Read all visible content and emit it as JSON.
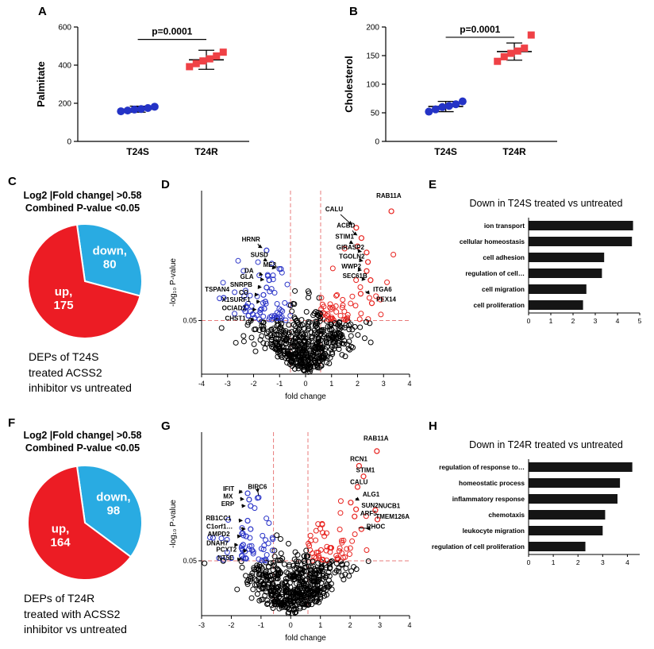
{
  "panels": {
    "a": {
      "letter": "A"
    },
    "b": {
      "letter": "B"
    },
    "c": {
      "letter": "C",
      "header_line1": "Log2 |Fold change| >0.58",
      "header_line2": "Combined P-value <0.05",
      "caption_lines": [
        "DEPs of T24S",
        "treated ACSS2",
        "inhibitor vs untreated"
      ]
    },
    "d": {
      "letter": "D"
    },
    "e": {
      "letter": "E"
    },
    "f": {
      "letter": "F",
      "header_line1": "Log2 |Fold change| >0.58",
      "header_line2": "Combined P-value <0.05",
      "caption_lines": [
        "DEPs of T24R",
        "treated with ACSS2",
        "inhibitor vs untreated"
      ]
    },
    "g": {
      "letter": "G"
    },
    "h": {
      "letter": "H"
    }
  },
  "chart_data": [
    {
      "id": "palmitate",
      "type": "scatter_dot",
      "ylabel": "Palmitate",
      "ylim": [
        0,
        600
      ],
      "yticks": [
        0,
        200,
        400,
        600
      ],
      "pvalue": "p=0.0001",
      "bracket_y": 535,
      "groups": [
        {
          "label": "T24S",
          "marker": "circle",
          "color": "#2433c6",
          "values": [
            158,
            162,
            167,
            170,
            175,
            182
          ],
          "mean": 169,
          "sd": 16
        },
        {
          "label": "T24R",
          "marker": "square",
          "color": "#ef4146",
          "values": [
            392,
            408,
            422,
            433,
            448,
            468
          ],
          "mean": 428,
          "sd": 50
        }
      ]
    },
    {
      "id": "cholesterol",
      "type": "scatter_dot",
      "ylabel": "Cholesterol",
      "ylim": [
        0,
        200
      ],
      "yticks": [
        0,
        50,
        100,
        150,
        200
      ],
      "pvalue": "p=0.0001",
      "bracket_y": 182,
      "groups": [
        {
          "label": "T24S",
          "marker": "circle",
          "color": "#2433c6",
          "values": [
            52,
            56,
            60,
            62,
            65,
            70
          ],
          "mean": 61,
          "sd": 9
        },
        {
          "label": "T24R",
          "marker": "square",
          "color": "#ef4146",
          "values": [
            140,
            148,
            154,
            158,
            163,
            186
          ],
          "mean": 157,
          "sd": 15
        }
      ]
    },
    {
      "id": "pie-t24s",
      "type": "pie",
      "start_deg": -8,
      "slices": [
        {
          "name": "down",
          "line1": "down,",
          "line2": "80",
          "value": 80,
          "color": "#29abe2",
          "text_color": "#ffffff"
        },
        {
          "name": "up",
          "line1": "up,",
          "line2": "175",
          "value": 175,
          "color": "#ec1c24",
          "text_color": "#ffffff"
        }
      ]
    },
    {
      "id": "volcano-t24s",
      "type": "volcano",
      "xlabel": "fold change",
      "ylabel": "-log₁₀ P-value",
      "xlim": [
        -4,
        4
      ],
      "ylim": [
        0,
        4.45
      ],
      "xticks": [
        -4,
        -3,
        -2,
        -1,
        0,
        1,
        2,
        3,
        4
      ],
      "sig_x": 0.58,
      "sig_y": 1.3,
      "sig_label": "0.05",
      "cloud": {
        "seed": 7,
        "n": 620,
        "x_sd": 1.05,
        "x_shift": 0,
        "y_noise": 0.62,
        "y_slope": 0.5
      },
      "colors": {
        "up": "#e8231f",
        "down": "#2b35c8",
        "ns": "#000000",
        "dash": "#e87c7c"
      },
      "genes": [
        {
          "label": "CALU",
          "x": 1.95,
          "y": 3.55,
          "lx": 1.1,
          "ly": 3.95,
          "anchor": "middle",
          "arrow": true
        },
        {
          "label": "RAB11A",
          "x": 3.3,
          "y": 3.95,
          "lx": 2.72,
          "ly": 4.28,
          "anchor": "start",
          "arrow": false
        },
        {
          "label": "ACBD",
          "x": 2.15,
          "y": 3.3,
          "lx": 1.55,
          "ly": 3.55,
          "anchor": "middle",
          "arrow": true
        },
        {
          "label": "STIM1",
          "x": 2.0,
          "y": 3.1,
          "lx": 1.5,
          "ly": 3.28,
          "anchor": "middle",
          "arrow": true
        },
        {
          "label": "GIRASP2",
          "x": 2.35,
          "y": 2.95,
          "lx": 1.72,
          "ly": 3.02,
          "anchor": "middle",
          "arrow": true
        },
        {
          "label": "TGOLN2",
          "x": 2.4,
          "y": 2.72,
          "lx": 1.78,
          "ly": 2.8,
          "anchor": "middle",
          "arrow": true
        },
        {
          "label": "WWP2",
          "x": 2.35,
          "y": 2.5,
          "lx": 1.76,
          "ly": 2.56,
          "anchor": "middle",
          "arrow": true
        },
        {
          "label": "SEC61B",
          "x": 2.5,
          "y": 2.28,
          "lx": 1.9,
          "ly": 2.33,
          "anchor": "middle",
          "arrow": true
        },
        {
          "label": "ITGA6",
          "x": 2.12,
          "y": 1.95,
          "lx": 2.6,
          "ly": 2.0,
          "anchor": "start",
          "arrow": true
        },
        {
          "label": "PEX14",
          "x": 2.55,
          "y": 1.72,
          "lx": 2.72,
          "ly": 1.76,
          "anchor": "start",
          "arrow": false
        },
        {
          "label": "HRNR",
          "x": -1.5,
          "y": 3.0,
          "lx": -2.1,
          "ly": 3.22,
          "anchor": "middle",
          "arrow": true
        },
        {
          "label": "SUSD",
          "x": -1.3,
          "y": 2.68,
          "lx": -1.78,
          "ly": 2.84,
          "anchor": "middle",
          "arrow": true
        },
        {
          "label": "ME3",
          "x": -0.95,
          "y": 2.55,
          "lx": -1.38,
          "ly": 2.6,
          "anchor": "middle",
          "arrow": true
        },
        {
          "label": "DA",
          "x": -1.45,
          "y": 2.38,
          "lx": -2.0,
          "ly": 2.46,
          "anchor": "end",
          "arrow": true
        },
        {
          "label": "GLA",
          "x": -1.4,
          "y": 2.28,
          "lx": -2.0,
          "ly": 2.31,
          "anchor": "end",
          "arrow": true
        },
        {
          "label": "SNRPB",
          "x": -1.5,
          "y": 2.1,
          "lx": -2.05,
          "ly": 2.12,
          "anchor": "end",
          "arrow": true
        },
        {
          "label": "TSPAN4",
          "x": -3.15,
          "y": 1.85,
          "lx": -3.4,
          "ly": 2.0,
          "anchor": "middle",
          "arrow": false
        },
        {
          "label": "CO",
          "x": -1.62,
          "y": 1.92,
          "lx": -2.2,
          "ly": 1.93,
          "anchor": "end",
          "arrow": true
        },
        {
          "label": "X1SURF1",
          "x": -1.55,
          "y": 1.76,
          "lx": -2.12,
          "ly": 1.75,
          "anchor": "end",
          "arrow": true
        },
        {
          "label": "OCIADZ",
          "x": -1.7,
          "y": 1.58,
          "lx": -2.28,
          "ly": 1.55,
          "anchor": "end",
          "arrow": true
        },
        {
          "label": "CHST1",
          "x": -1.78,
          "y": 1.33,
          "lx": -2.3,
          "ly": 1.3,
          "anchor": "end",
          "arrow": true
        }
      ]
    },
    {
      "id": "go-t24s",
      "type": "hbar",
      "title": "Down in T24S treated vs untreated",
      "categories": [
        "ion transport",
        "cellular homeostasis",
        "cell adhesion",
        "regulation of cell…",
        "cell migration",
        "cell proliferation"
      ],
      "values": [
        4.7,
        4.65,
        3.4,
        3.3,
        2.6,
        2.45
      ],
      "xlim": [
        0,
        5
      ],
      "xticks": [
        0,
        1,
        2,
        3,
        4,
        5
      ],
      "bar_color": "#151515"
    },
    {
      "id": "pie-t24r",
      "type": "pie",
      "start_deg": -8,
      "slices": [
        {
          "name": "down",
          "line1": "down,",
          "line2": "98",
          "value": 98,
          "color": "#29abe2",
          "text_color": "#ffffff"
        },
        {
          "name": "up",
          "line1": "up,",
          "line2": "164",
          "value": 164,
          "color": "#ec1c24",
          "text_color": "#ffffff"
        }
      ]
    },
    {
      "id": "volcano-t24r",
      "type": "volcano",
      "xlabel": "fold change",
      "ylabel": "-log₁₀ P-value",
      "xlim": [
        -3,
        4
      ],
      "ylim": [
        0,
        4.35
      ],
      "xticks": [
        -3,
        -2,
        -1,
        0,
        1,
        2,
        3,
        4
      ],
      "sig_x": 0.58,
      "sig_y": 1.3,
      "sig_label": "0.05",
      "cloud": {
        "seed": 13,
        "n": 620,
        "x_sd": 0.95,
        "x_shift": 0.1,
        "y_noise": 0.62,
        "y_slope": 0.5
      },
      "colors": {
        "up": "#e8231f",
        "down": "#2b35c8",
        "ns": "#000000",
        "dash": "#e87c7c"
      },
      "genes": [
        {
          "label": "RAB11A",
          "x": 2.9,
          "y": 3.9,
          "lx": 2.45,
          "ly": 4.15,
          "anchor": "start",
          "arrow": false
        },
        {
          "label": "RCN1",
          "x": 2.3,
          "y": 3.55,
          "lx": 2.0,
          "ly": 3.66,
          "anchor": "start",
          "arrow": false
        },
        {
          "label": "STIM1",
          "x": 2.45,
          "y": 3.3,
          "lx": 2.2,
          "ly": 3.4,
          "anchor": "start",
          "arrow": false
        },
        {
          "label": "CALU",
          "x": 2.25,
          "y": 3.05,
          "lx": 2.0,
          "ly": 3.12,
          "anchor": "start",
          "arrow": false
        },
        {
          "label": "ALG1",
          "x": 2.02,
          "y": 2.68,
          "lx": 2.42,
          "ly": 2.82,
          "anchor": "start",
          "arrow": true
        },
        {
          "label": "SUN2",
          "x": 2.2,
          "y": 2.52,
          "lx": 2.38,
          "ly": 2.56,
          "anchor": "start",
          "arrow": false
        },
        {
          "label": "ARF5",
          "x": 2.15,
          "y": 2.35,
          "lx": 2.34,
          "ly": 2.37,
          "anchor": "start",
          "arrow": false
        },
        {
          "label": "NUCB1",
          "x": 2.85,
          "y": 2.5,
          "lx": 2.95,
          "ly": 2.55,
          "anchor": "start",
          "arrow": false
        },
        {
          "label": "TMEM126A",
          "x": 2.92,
          "y": 2.28,
          "lx": 2.86,
          "ly": 2.3,
          "anchor": "start",
          "arrow": false
        },
        {
          "label": "RHOC",
          "x": 2.38,
          "y": 2.05,
          "lx": 2.55,
          "ly": 2.06,
          "anchor": "start",
          "arrow": true
        },
        {
          "label": "IFIT",
          "x": -1.45,
          "y": 2.9,
          "lx": -1.9,
          "ly": 2.96,
          "anchor": "end",
          "arrow": true
        },
        {
          "label": "MX",
          "x": -1.4,
          "y": 2.75,
          "lx": -1.95,
          "ly": 2.78,
          "anchor": "end",
          "arrow": true
        },
        {
          "label": "BIRC6",
          "x": -1.08,
          "y": 2.8,
          "lx": -1.12,
          "ly": 3.0,
          "anchor": "middle",
          "arrow": true
        },
        {
          "label": "ERP",
          "x": -1.35,
          "y": 2.6,
          "lx": -1.9,
          "ly": 2.6,
          "anchor": "end",
          "arrow": true
        },
        {
          "label": "RB1CC1",
          "x": -1.45,
          "y": 2.25,
          "lx": -2.0,
          "ly": 2.26,
          "anchor": "end",
          "arrow": true
        },
        {
          "label": "C1orf1…",
          "x": -1.35,
          "y": 2.05,
          "lx": -1.95,
          "ly": 2.06,
          "anchor": "end",
          "arrow": true
        },
        {
          "label": "AMPD2",
          "x": -1.5,
          "y": 1.88,
          "lx": -2.05,
          "ly": 1.88,
          "anchor": "end",
          "arrow": true
        },
        {
          "label": "DNAH7",
          "x": -1.6,
          "y": 1.68,
          "lx": -2.1,
          "ly": 1.67,
          "anchor": "end",
          "arrow": true
        },
        {
          "label": "PCYT2",
          "x": -1.3,
          "y": 1.55,
          "lx": -1.82,
          "ly": 1.52,
          "anchor": "end",
          "arrow": true
        },
        {
          "label": "NT5E",
          "x": -1.5,
          "y": 1.35,
          "lx": -1.92,
          "ly": 1.32,
          "anchor": "end",
          "arrow": true
        }
      ]
    },
    {
      "id": "go-t24r",
      "type": "hbar",
      "title": "Down in T24R treated vs untreated",
      "categories": [
        "regulation of response to…",
        "homeostatic process",
        "inflammatory response",
        "chemotaxis",
        "leukocyte migration",
        "regulation of cell proliferation"
      ],
      "values": [
        4.2,
        3.7,
        3.6,
        3.1,
        3.0,
        2.3
      ],
      "xlim": [
        0,
        4.5
      ],
      "xticks": [
        0,
        1,
        2,
        3,
        4
      ],
      "bar_color": "#151515"
    }
  ]
}
